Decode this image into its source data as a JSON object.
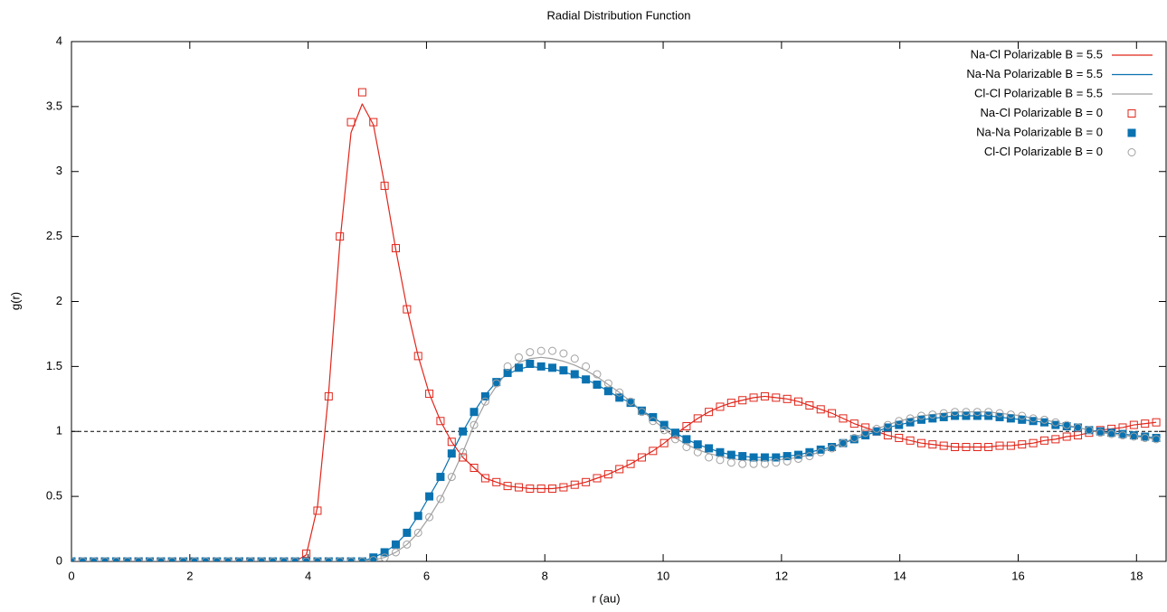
{
  "chart_data": {
    "type": "line",
    "title": "Radial Distribution Function",
    "xlabel": "r (au)",
    "ylabel": "g(r)",
    "xlim": [
      0,
      18.5
    ],
    "ylim": [
      0,
      4
    ],
    "xticks": [
      0,
      2,
      4,
      6,
      8,
      10,
      12,
      14,
      16,
      18
    ],
    "yticks": [
      0,
      0.5,
      1,
      1.5,
      2,
      2.5,
      3,
      3.5,
      4
    ],
    "hline": 1,
    "legend": "top-right",
    "x": [
      0,
      0.189,
      0.378,
      0.567,
      0.756,
      0.945,
      1.134,
      1.323,
      1.512,
      1.701,
      1.89,
      2.079,
      2.268,
      2.457,
      2.646,
      2.835,
      3.024,
      3.213,
      3.402,
      3.591,
      3.78,
      3.969,
      4.158,
      4.347,
      4.536,
      4.725,
      4.914,
      5.103,
      5.292,
      5.481,
      5.67,
      5.859,
      6.048,
      6.237,
      6.426,
      6.615,
      6.804,
      6.993,
      7.182,
      7.371,
      7.56,
      7.749,
      7.938,
      8.127,
      8.316,
      8.505,
      8.694,
      8.883,
      9.072,
      9.261,
      9.45,
      9.639,
      9.828,
      10.017,
      10.206,
      10.395,
      10.584,
      10.773,
      10.962,
      11.151,
      11.34,
      11.529,
      11.718,
      11.907,
      12.096,
      12.285,
      12.474,
      12.663,
      12.852,
      13.041,
      13.23,
      13.419,
      13.608,
      13.797,
      13.986,
      14.175,
      14.364,
      14.553,
      14.742,
      14.931,
      15.12,
      15.309,
      15.498,
      15.687,
      15.876,
      16.065,
      16.254,
      16.443,
      16.632,
      16.821,
      17.01,
      17.199,
      17.388,
      17.577,
      17.766,
      17.955,
      18.144,
      18.333
    ],
    "series": [
      {
        "name": "Na-Cl Polarizable B = 5.5",
        "color": "#e0261b",
        "mode": "line",
        "values": [
          0,
          0,
          0,
          0,
          0,
          0,
          0,
          0,
          0,
          0,
          0,
          0,
          0,
          0,
          0,
          0,
          0,
          0,
          0,
          0,
          0,
          0.05,
          0.42,
          1.3,
          2.45,
          3.3,
          3.52,
          3.36,
          2.9,
          2.4,
          1.95,
          1.58,
          1.29,
          1.08,
          0.92,
          0.8,
          0.72,
          0.64,
          0.61,
          0.58,
          0.57,
          0.56,
          0.56,
          0.56,
          0.57,
          0.59,
          0.61,
          0.64,
          0.67,
          0.71,
          0.75,
          0.8,
          0.85,
          0.91,
          0.98,
          1.04,
          1.1,
          1.15,
          1.19,
          1.22,
          1.24,
          1.26,
          1.27,
          1.26,
          1.25,
          1.23,
          1.2,
          1.17,
          1.14,
          1.1,
          1.06,
          1.03,
          1.0,
          0.97,
          0.95,
          0.93,
          0.91,
          0.9,
          0.89,
          0.88,
          0.88,
          0.88,
          0.88,
          0.89,
          0.89,
          0.9,
          0.91,
          0.93,
          0.94,
          0.96,
          0.97,
          0.99,
          1.01,
          1.02,
          1.03,
          1.05,
          1.06,
          1.07
        ]
      },
      {
        "name": "Na-Na Polarizable B = 5.5",
        "color": "#0a72b0",
        "mode": "line",
        "values": [
          0,
          0,
          0,
          0,
          0,
          0,
          0,
          0,
          0,
          0,
          0,
          0,
          0,
          0,
          0,
          0,
          0,
          0,
          0,
          0,
          0,
          0,
          0,
          0,
          0,
          0,
          0,
          0.03,
          0.07,
          0.13,
          0.22,
          0.35,
          0.5,
          0.65,
          0.83,
          1.0,
          1.15,
          1.28,
          1.38,
          1.44,
          1.48,
          1.5,
          1.49,
          1.48,
          1.46,
          1.43,
          1.4,
          1.36,
          1.31,
          1.26,
          1.22,
          1.16,
          1.11,
          1.05,
          0.99,
          0.94,
          0.9,
          0.87,
          0.84,
          0.82,
          0.81,
          0.8,
          0.8,
          0.8,
          0.81,
          0.82,
          0.84,
          0.86,
          0.88,
          0.91,
          0.94,
          0.97,
          1.0,
          1.03,
          1.05,
          1.07,
          1.09,
          1.1,
          1.11,
          1.12,
          1.12,
          1.12,
          1.12,
          1.11,
          1.1,
          1.09,
          1.08,
          1.07,
          1.05,
          1.04,
          1.03,
          1.01,
          1.0,
          0.99,
          0.98,
          0.97,
          0.96,
          0.95
        ]
      },
      {
        "name": "Cl-Cl Polarizable B = 5.5",
        "color": "#a0a0a0",
        "mode": "line",
        "values": [
          0,
          0,
          0,
          0,
          0,
          0,
          0,
          0,
          0,
          0,
          0,
          0,
          0,
          0,
          0,
          0,
          0,
          0,
          0,
          0,
          0,
          0,
          0,
          0,
          0,
          0,
          0,
          0.01,
          0.03,
          0.07,
          0.13,
          0.22,
          0.34,
          0.48,
          0.65,
          0.84,
          1.05,
          1.22,
          1.35,
          1.46,
          1.53,
          1.56,
          1.57,
          1.56,
          1.54,
          1.51,
          1.47,
          1.42,
          1.36,
          1.3,
          1.23,
          1.16,
          1.09,
          1.02,
          0.95,
          0.9,
          0.86,
          0.83,
          0.81,
          0.79,
          0.78,
          0.78,
          0.78,
          0.78,
          0.79,
          0.8,
          0.82,
          0.84,
          0.87,
          0.91,
          0.95,
          0.99,
          1.02,
          1.05,
          1.08,
          1.1,
          1.12,
          1.13,
          1.14,
          1.15,
          1.15,
          1.15,
          1.15,
          1.14,
          1.13,
          1.12,
          1.1,
          1.09,
          1.07,
          1.05,
          1.03,
          1.01,
          0.99,
          0.98,
          0.97,
          0.96,
          0.95,
          0.94
        ]
      },
      {
        "name": "Na-Cl Polarizable B = 0",
        "color": "#e0261b",
        "mode": "points",
        "marker": "square-open",
        "values": [
          0,
          0,
          0,
          0,
          0,
          0,
          0,
          0,
          0,
          0,
          0,
          0,
          0,
          0,
          0,
          0,
          0,
          0,
          0,
          0,
          0,
          0.06,
          0.39,
          1.27,
          2.5,
          3.38,
          3.61,
          3.38,
          2.89,
          2.41,
          1.94,
          1.58,
          1.29,
          1.08,
          0.92,
          0.8,
          0.72,
          0.64,
          0.61,
          0.58,
          0.57,
          0.56,
          0.56,
          0.56,
          0.57,
          0.59,
          0.61,
          0.64,
          0.67,
          0.71,
          0.75,
          0.8,
          0.85,
          0.91,
          0.98,
          1.04,
          1.1,
          1.15,
          1.19,
          1.22,
          1.24,
          1.26,
          1.27,
          1.26,
          1.25,
          1.23,
          1.2,
          1.17,
          1.14,
          1.1,
          1.06,
          1.03,
          1.0,
          0.97,
          0.95,
          0.93,
          0.91,
          0.9,
          0.89,
          0.88,
          0.88,
          0.88,
          0.88,
          0.89,
          0.89,
          0.9,
          0.91,
          0.93,
          0.94,
          0.96,
          0.97,
          0.99,
          1.01,
          1.02,
          1.03,
          1.05,
          1.06,
          1.07
        ]
      },
      {
        "name": "Na-Na Polarizable B = 0",
        "color": "#0a72b0",
        "mode": "points",
        "marker": "square-filled",
        "values": [
          0,
          0,
          0,
          0,
          0,
          0,
          0,
          0,
          0,
          0,
          0,
          0,
          0,
          0,
          0,
          0,
          0,
          0,
          0,
          0,
          0,
          0,
          0,
          0,
          0,
          0,
          0,
          0.03,
          0.07,
          0.13,
          0.22,
          0.35,
          0.5,
          0.65,
          0.83,
          1.0,
          1.15,
          1.27,
          1.38,
          1.45,
          1.49,
          1.52,
          1.5,
          1.49,
          1.47,
          1.44,
          1.4,
          1.36,
          1.31,
          1.26,
          1.22,
          1.16,
          1.11,
          1.05,
          0.99,
          0.94,
          0.9,
          0.87,
          0.84,
          0.82,
          0.81,
          0.8,
          0.8,
          0.8,
          0.81,
          0.82,
          0.84,
          0.86,
          0.88,
          0.91,
          0.94,
          0.97,
          1.0,
          1.03,
          1.05,
          1.07,
          1.09,
          1.1,
          1.11,
          1.12,
          1.12,
          1.12,
          1.12,
          1.11,
          1.1,
          1.09,
          1.08,
          1.07,
          1.05,
          1.04,
          1.03,
          1.01,
          1.0,
          0.99,
          0.98,
          0.97,
          0.96,
          0.95
        ]
      },
      {
        "name": "Cl-Cl Polarizable B = 0",
        "color": "#a0a0a0",
        "mode": "points",
        "marker": "circle-open",
        "values": [
          0,
          0,
          0,
          0,
          0,
          0,
          0,
          0,
          0,
          0,
          0,
          0,
          0,
          0,
          0,
          0,
          0,
          0,
          0,
          0,
          0,
          0,
          0,
          0,
          0,
          0,
          0,
          0.01,
          0.03,
          0.07,
          0.13,
          0.22,
          0.34,
          0.48,
          0.65,
          0.84,
          1.05,
          1.23,
          1.37,
          1.5,
          1.57,
          1.61,
          1.62,
          1.62,
          1.6,
          1.56,
          1.5,
          1.44,
          1.37,
          1.3,
          1.23,
          1.15,
          1.08,
          1.01,
          0.94,
          0.88,
          0.84,
          0.8,
          0.78,
          0.76,
          0.75,
          0.75,
          0.75,
          0.76,
          0.77,
          0.79,
          0.81,
          0.84,
          0.87,
          0.91,
          0.95,
          0.99,
          1.02,
          1.05,
          1.08,
          1.1,
          1.12,
          1.13,
          1.14,
          1.15,
          1.15,
          1.15,
          1.15,
          1.14,
          1.13,
          1.12,
          1.1,
          1.09,
          1.07,
          1.05,
          1.03,
          1.01,
          0.99,
          0.98,
          0.97,
          0.96,
          0.95,
          0.94
        ]
      }
    ]
  }
}
